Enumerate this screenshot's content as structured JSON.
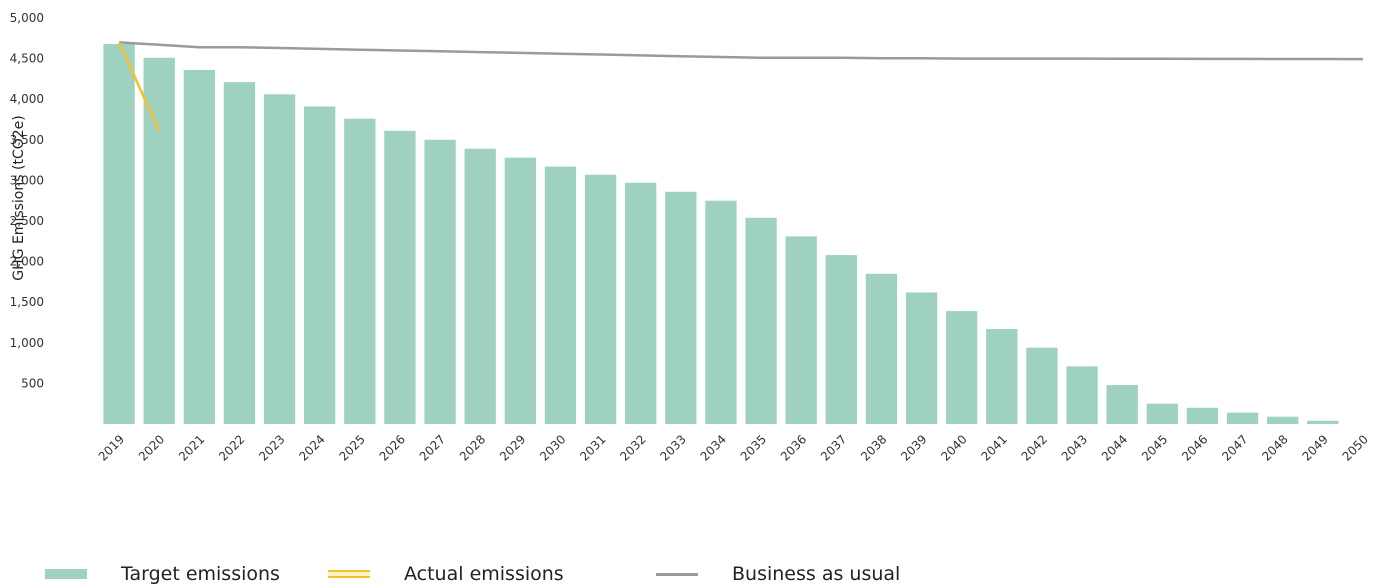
{
  "chart_data": {
    "type": "bar",
    "ylabel": "GHG Emissions (tCO2e)",
    "xlabel": "",
    "ylim": [
      0,
      5000
    ],
    "yticks": [
      500,
      1000,
      1500,
      2000,
      2500,
      3000,
      3500,
      4000,
      4500,
      5000
    ],
    "ytick_labels": [
      "500",
      "1,000",
      "1,500",
      "2,000",
      "2,500",
      "3,000",
      "3,500",
      "4,000",
      "4,500",
      "5,000"
    ],
    "grid": false,
    "legend_position": "bottom",
    "categories": [
      "2019",
      "2020",
      "2021",
      "2022",
      "2023",
      "2024",
      "2025",
      "2026",
      "2027",
      "2028",
      "2029",
      "2030",
      "2031",
      "2032",
      "2033",
      "2034",
      "2035",
      "2036",
      "2037",
      "2038",
      "2039",
      "2040",
      "2041",
      "2042",
      "2043",
      "2044",
      "2045",
      "2046",
      "2047",
      "2048",
      "2049",
      "2050"
    ],
    "series": [
      {
        "name": "Target emissions",
        "kind": "bar",
        "color": "#9fd1c0",
        "values": [
          4680,
          4510,
          4360,
          4210,
          4060,
          3910,
          3760,
          3610,
          3500,
          3390,
          3280,
          3170,
          3070,
          2970,
          2860,
          2750,
          2540,
          2310,
          2080,
          1850,
          1620,
          1390,
          1170,
          940,
          710,
          480,
          250,
          200,
          140,
          90,
          40,
          0
        ]
      },
      {
        "name": "Actual emissions",
        "kind": "line",
        "color": "#f5c02e",
        "x": [
          "2019",
          "2020"
        ],
        "values": [
          4700,
          3610
        ]
      },
      {
        "name": "Business as usual",
        "kind": "line",
        "color": "#9a9a9a",
        "values": [
          4700,
          4670,
          4640,
          4640,
          4630,
          4620,
          4610,
          4600,
          4590,
          4580,
          4570,
          4560,
          4550,
          4540,
          4530,
          4520,
          4510,
          4510,
          4510,
          4505,
          4505,
          4500,
          4500,
          4500,
          4500,
          4498,
          4498,
          4496,
          4496,
          4495,
          4495,
          4494
        ]
      }
    ]
  }
}
